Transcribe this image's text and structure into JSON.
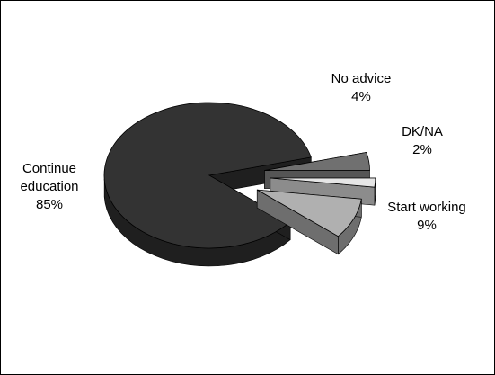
{
  "chart_data": {
    "type": "pie",
    "style": "3d-exploded",
    "slices": [
      {
        "label": "Continue education",
        "label_lines": [
          "Continue",
          "education"
        ],
        "value": 85,
        "value_text": "85%",
        "color": "#333333",
        "side_color": "#1f1f1f"
      },
      {
        "label": "No advice",
        "label_lines": [
          "No advice"
        ],
        "value": 4,
        "value_text": "4%",
        "color": "#707070",
        "side_color": "#555555"
      },
      {
        "label": "DK/NA",
        "label_lines": [
          "DK/NA"
        ],
        "value": 2,
        "value_text": "2%",
        "color": "#e6e6e6",
        "side_color": "#8c8c8c"
      },
      {
        "label": "Start working",
        "label_lines": [
          "Start working"
        ],
        "value": 9,
        "value_text": "9%",
        "color": "#b0b0b0",
        "side_color": "#6e6e6e"
      }
    ]
  }
}
